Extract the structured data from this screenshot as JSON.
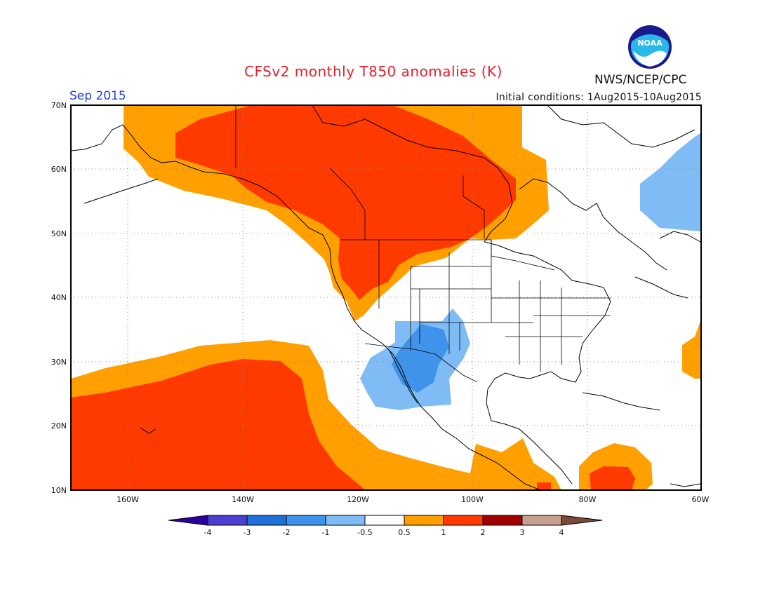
{
  "header": {
    "title": "CFSv2 monthly T850 anomalies (K)",
    "agency": "NWS/NCEP/CPC",
    "logo_text": "NOAA",
    "month": "Sep 2015",
    "initial_conditions": "Initial conditions: 1Aug2015-10Aug2015"
  },
  "map": {
    "lat_labels": [
      "70N",
      "60N",
      "50N",
      "40N",
      "30N",
      "20N",
      "10N"
    ],
    "lon_labels": [
      "160W",
      "140W",
      "120W",
      "100W",
      "80W",
      "60W"
    ]
  },
  "colorbar": {
    "labels": [
      "-4",
      "-3",
      "-2",
      "-1",
      "-0.5",
      "0.5",
      "1",
      "2",
      "3",
      "4"
    ],
    "colors": [
      "#2a00a0",
      "#4a3fd0",
      "#1f6fd8",
      "#3f93ea",
      "#7fbcf5",
      "#ffffff",
      "#ffa000",
      "#ff3a00",
      "#a00000",
      "#c8a090",
      "#7a4a38"
    ]
  },
  "colors": {
    "title": "#e8202a",
    "month": "#2244dd",
    "anom_0p5_1": "#ffa000",
    "anom_1_2": "#ff3a00",
    "anom_m1_m0p5": "#7fbcf5",
    "anom_m2_m1": "#3f93ea"
  }
}
